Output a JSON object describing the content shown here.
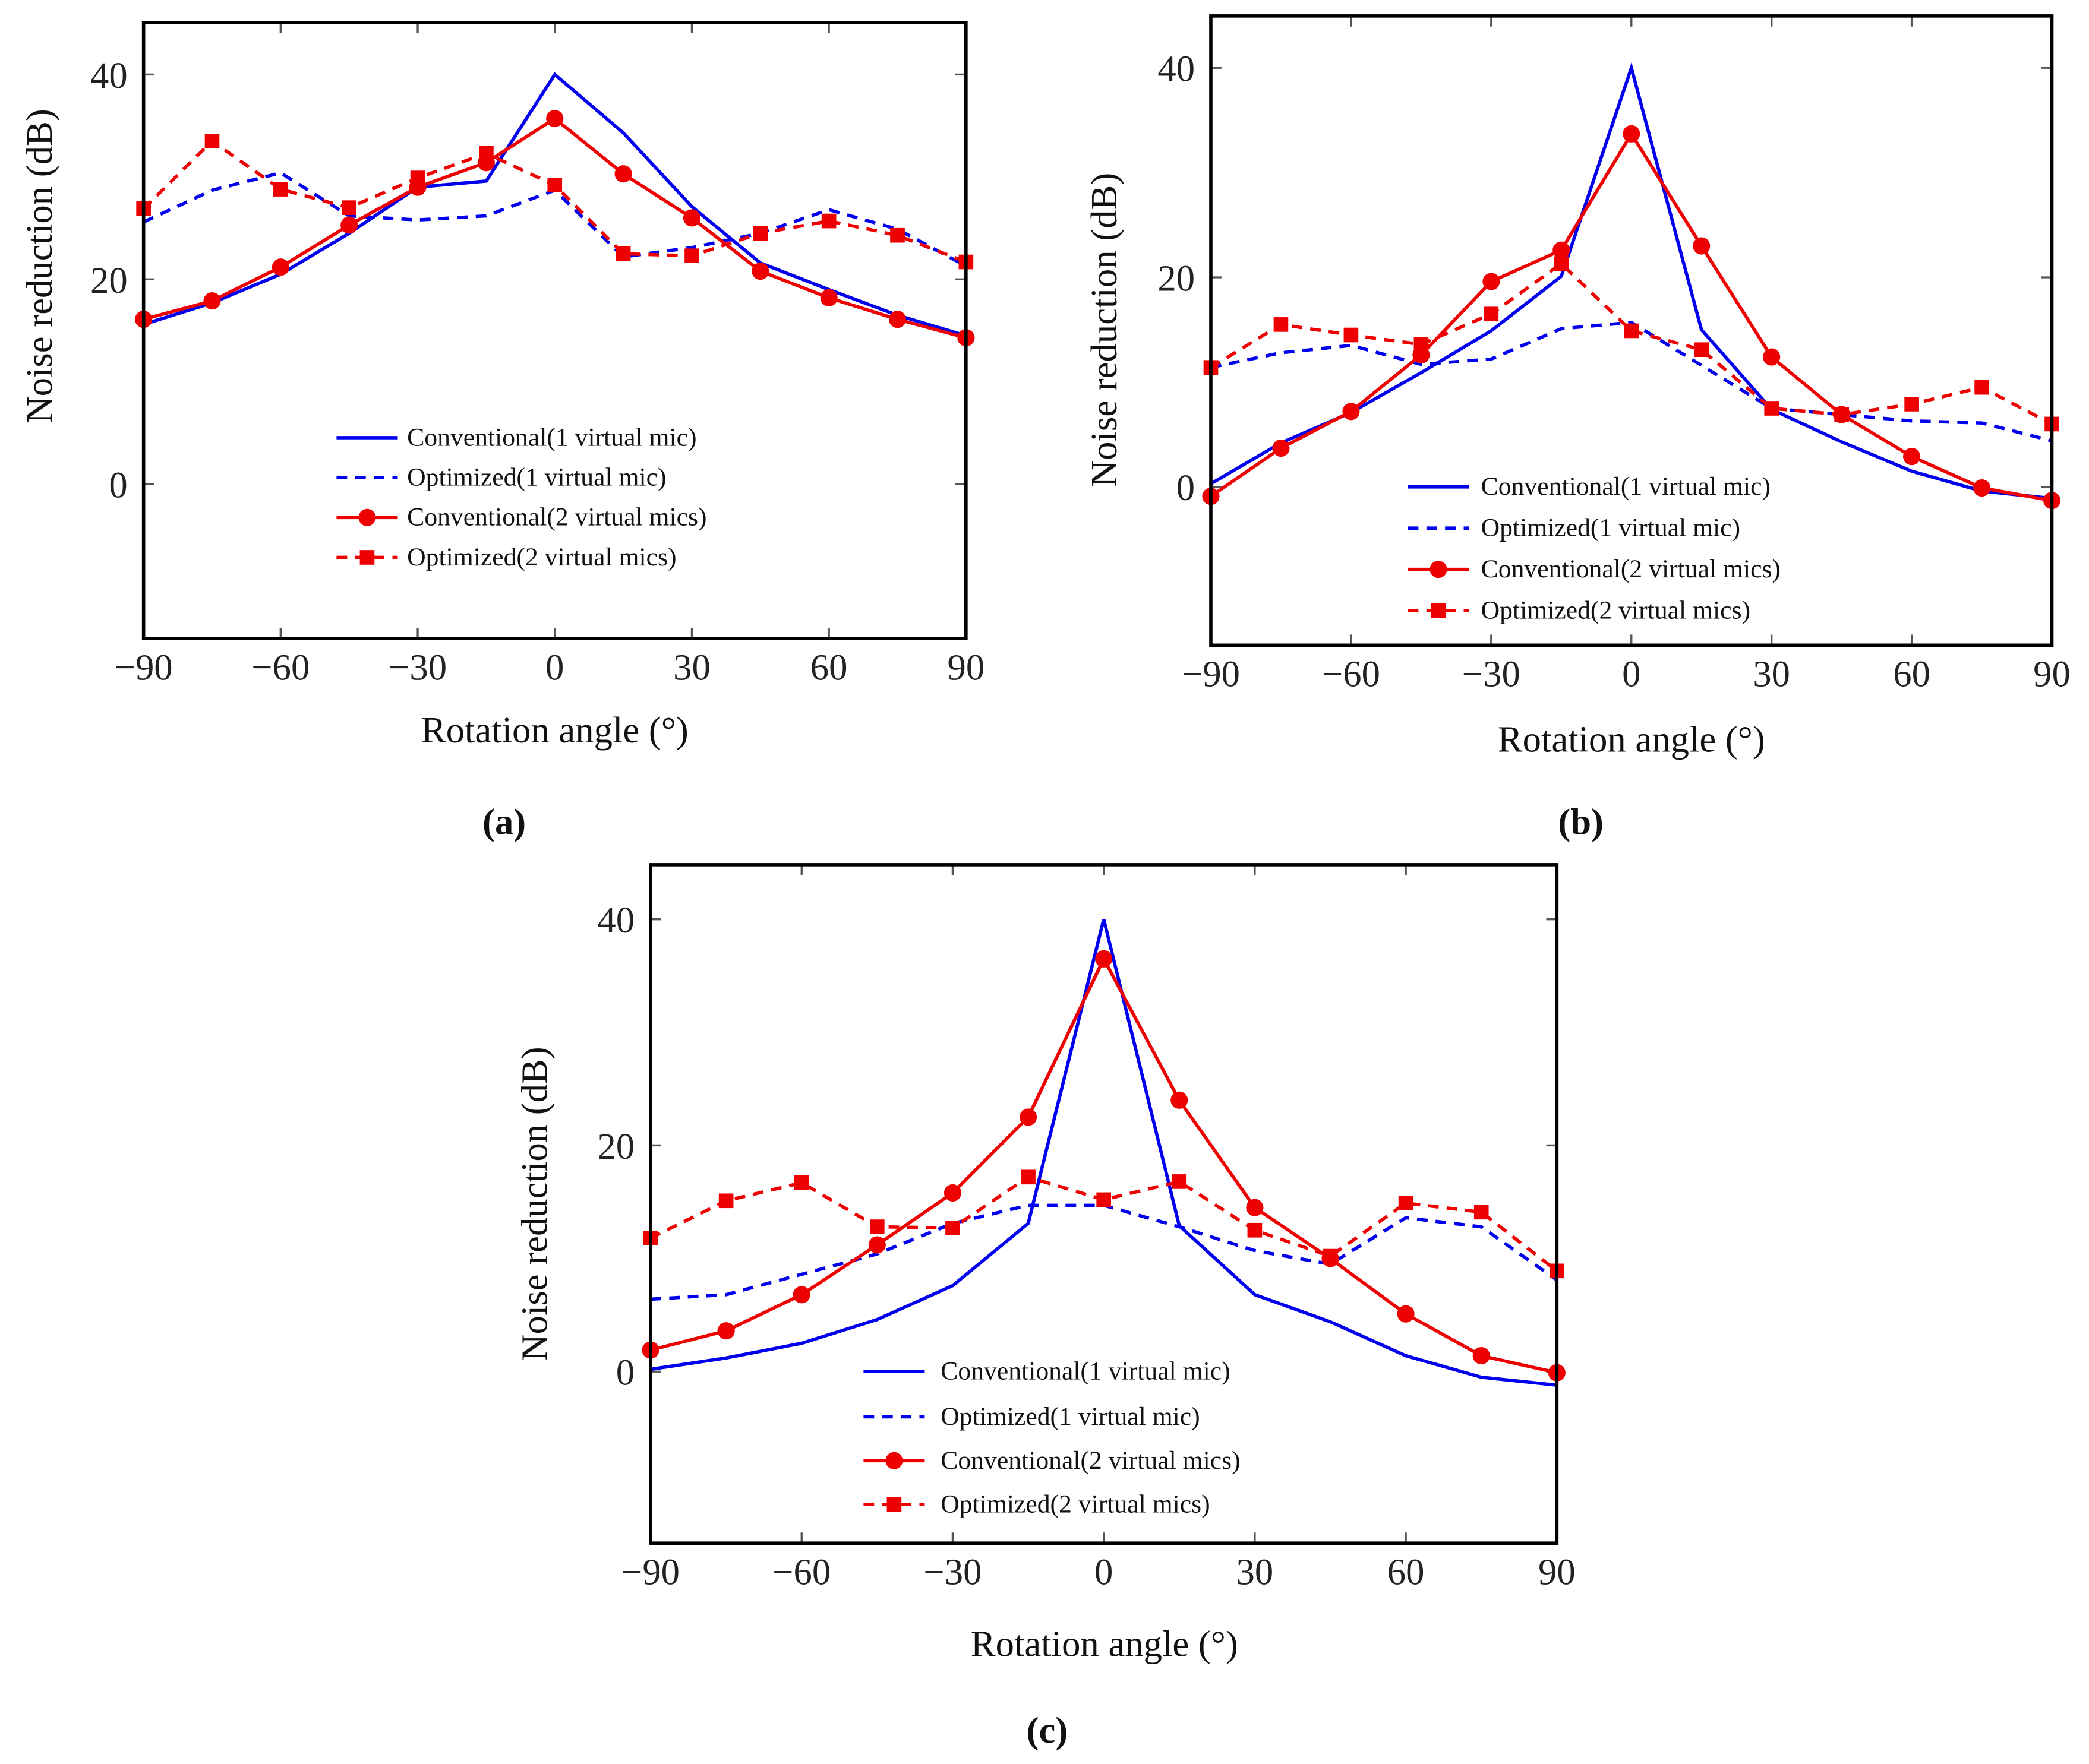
{
  "chart_data": [
    {
      "type": "line",
      "panel_label": "(a)",
      "xlabel": "Rotation angle (°)",
      "ylabel": "Noise reduction (dB)",
      "x": [
        -90,
        -75,
        -60,
        -45,
        -30,
        -15,
        0,
        15,
        30,
        45,
        60,
        75,
        90
      ],
      "xticks": [
        "−90",
        "−60",
        "−30",
        "0",
        "30",
        "60",
        "90"
      ],
      "yticks": [
        "0",
        "20",
        "40"
      ],
      "xlim": [
        -90,
        90
      ],
      "ylim": [
        -15,
        45
      ],
      "legend_position": "lower-center",
      "series": [
        {
          "name": "Conventional(1 virtual mic)",
          "color": "#0000ee",
          "style": "solid",
          "marker": "none",
          "values": [
            15.6,
            17.7,
            20.5,
            24.5,
            29.0,
            29.6,
            40.0,
            34.3,
            27.1,
            21.6,
            19.0,
            16.5,
            14.5
          ]
        },
        {
          "name": "Optimized(1 virtual mic)",
          "color": "#0000ee",
          "style": "dashed",
          "marker": "none",
          "values": [
            25.6,
            28.7,
            30.4,
            26.2,
            25.8,
            26.2,
            28.7,
            22.2,
            23.1,
            24.5,
            26.8,
            24.9,
            21.3
          ]
        },
        {
          "name": "Conventional(2 virtual mics)",
          "color": "#ee0000",
          "style": "solid",
          "marker": "circle",
          "values": [
            16.1,
            17.9,
            21.2,
            25.3,
            29.0,
            31.4,
            35.7,
            30.3,
            26.0,
            20.8,
            18.2,
            16.1,
            14.3
          ]
        },
        {
          "name": "Optimized(2 virtual mics)",
          "color": "#ee0000",
          "style": "dashed",
          "marker": "square",
          "values": [
            26.9,
            33.5,
            28.8,
            27.0,
            29.9,
            32.3,
            29.2,
            22.5,
            22.3,
            24.5,
            25.7,
            24.3,
            21.7
          ]
        }
      ]
    },
    {
      "type": "line",
      "panel_label": "(b)",
      "xlabel": "Rotation angle (°)",
      "ylabel": "Noise reduction (dB)",
      "x": [
        -90,
        -75,
        -60,
        -45,
        -30,
        -15,
        0,
        15,
        30,
        45,
        60,
        75,
        90
      ],
      "xticks": [
        "−90",
        "−60",
        "−30",
        "0",
        "30",
        "60",
        "90"
      ],
      "yticks": [
        "0",
        "20",
        "40"
      ],
      "xlim": [
        -90,
        90
      ],
      "ylim": [
        -15,
        45
      ],
      "legend_position": "lower-center",
      "series": [
        {
          "name": "Conventional(1 virtual mic)",
          "color": "#0000ee",
          "style": "solid",
          "marker": "none",
          "values": [
            0.3,
            4.2,
            7.1,
            10.9,
            14.9,
            20.1,
            40.0,
            15.0,
            7.4,
            4.3,
            1.5,
            -0.4,
            -1.1
          ]
        },
        {
          "name": "Optimized(1 virtual mic)",
          "color": "#0000ee",
          "style": "dashed",
          "marker": "none",
          "values": [
            11.4,
            12.8,
            13.5,
            11.7,
            12.2,
            15.1,
            15.7,
            11.6,
            7.5,
            6.9,
            6.3,
            6.1,
            4.4
          ]
        },
        {
          "name": "Conventional(2 virtual mics)",
          "color": "#ee0000",
          "style": "solid",
          "marker": "circle",
          "values": [
            -0.9,
            3.7,
            7.2,
            12.6,
            19.6,
            22.6,
            33.7,
            23.0,
            12.4,
            6.9,
            2.9,
            -0.1,
            -1.3
          ]
        },
        {
          "name": "Optimized(2 virtual mics)",
          "color": "#ee0000",
          "style": "dashed",
          "marker": "square",
          "values": [
            11.4,
            15.5,
            14.5,
            13.6,
            16.5,
            21.3,
            14.9,
            13.1,
            7.5,
            6.9,
            7.9,
            9.5,
            6.0
          ]
        }
      ]
    },
    {
      "type": "line",
      "panel_label": "(c)",
      "xlabel": "Rotation angle (°)",
      "ylabel": "Noise reduction (dB)",
      "x": [
        -90,
        -75,
        -60,
        -45,
        -30,
        -15,
        0,
        15,
        30,
        45,
        60,
        75,
        90
      ],
      "xticks": [
        "−90",
        "−60",
        "−30",
        "0",
        "30",
        "60",
        "90"
      ],
      "yticks": [
        "0",
        "20",
        "40"
      ],
      "xlim": [
        -90,
        90
      ],
      "ylim": [
        -15,
        45
      ],
      "legend_position": "lower-center",
      "series": [
        {
          "name": "Conventional(1 virtual mic)",
          "color": "#0000ee",
          "style": "solid",
          "marker": "none",
          "values": [
            0.2,
            1.2,
            2.5,
            4.6,
            7.6,
            13.1,
            40.0,
            12.9,
            6.8,
            4.4,
            1.4,
            -0.5,
            -1.2
          ]
        },
        {
          "name": "Optimized(1 virtual mic)",
          "color": "#0000ee",
          "style": "dashed",
          "marker": "none",
          "values": [
            6.4,
            6.8,
            8.6,
            10.4,
            13.1,
            14.7,
            14.7,
            12.8,
            10.7,
            9.5,
            13.6,
            12.8,
            8.1
          ]
        },
        {
          "name": "Conventional(2 virtual mics)",
          "color": "#ee0000",
          "style": "solid",
          "marker": "circle",
          "values": [
            1.9,
            3.6,
            6.8,
            11.2,
            15.8,
            22.5,
            36.5,
            24.0,
            14.5,
            10.0,
            5.1,
            1.4,
            -0.1
          ]
        },
        {
          "name": "Optimized(2 virtual mics)",
          "color": "#ee0000",
          "style": "dashed",
          "marker": "square",
          "values": [
            11.8,
            15.1,
            16.7,
            12.8,
            12.7,
            17.2,
            15.2,
            16.8,
            12.5,
            10.2,
            14.9,
            14.1,
            8.9
          ]
        }
      ]
    }
  ]
}
